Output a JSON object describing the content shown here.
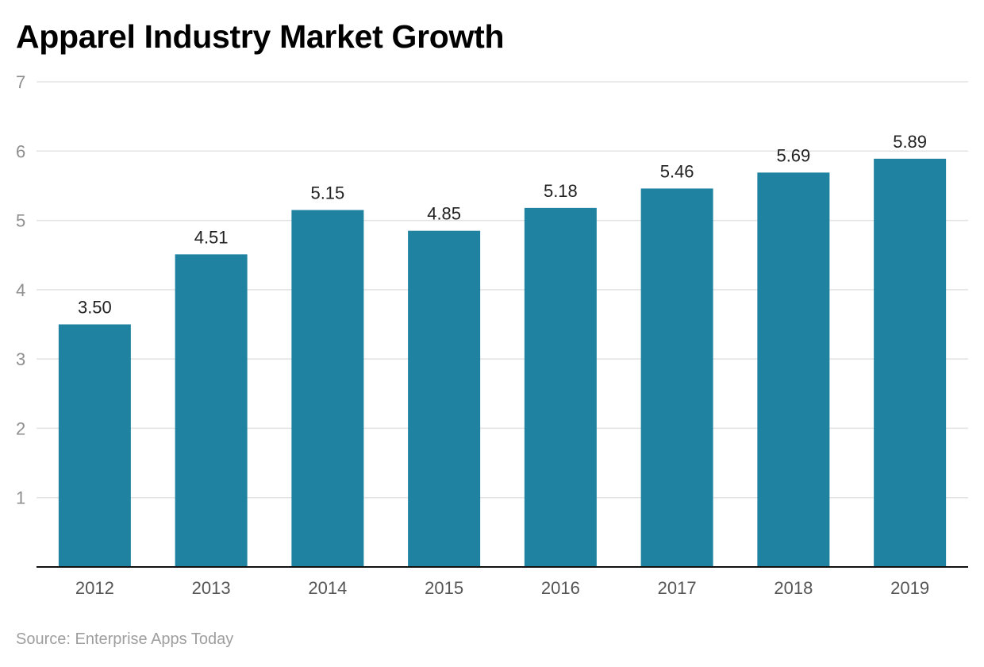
{
  "chart_data": {
    "type": "bar",
    "title": "Apparel Industry Market Growth",
    "categories": [
      "2012",
      "2013",
      "2014",
      "2015",
      "2016",
      "2017",
      "2018",
      "2019"
    ],
    "values": [
      3.5,
      4.51,
      5.15,
      4.85,
      5.18,
      5.46,
      5.69,
      5.89
    ],
    "value_labels": [
      "3.50",
      "4.51",
      "5.15",
      "4.85",
      "5.18",
      "5.46",
      "5.69",
      "5.89"
    ],
    "ylim": [
      0,
      7
    ],
    "yticks": [
      "1",
      "2",
      "3",
      "4",
      "5",
      "6",
      "7"
    ],
    "grid": true,
    "bar_color": "#1e82a0",
    "xlabel": "",
    "ylabel": ""
  },
  "source": "Source: Enterprise Apps Today"
}
